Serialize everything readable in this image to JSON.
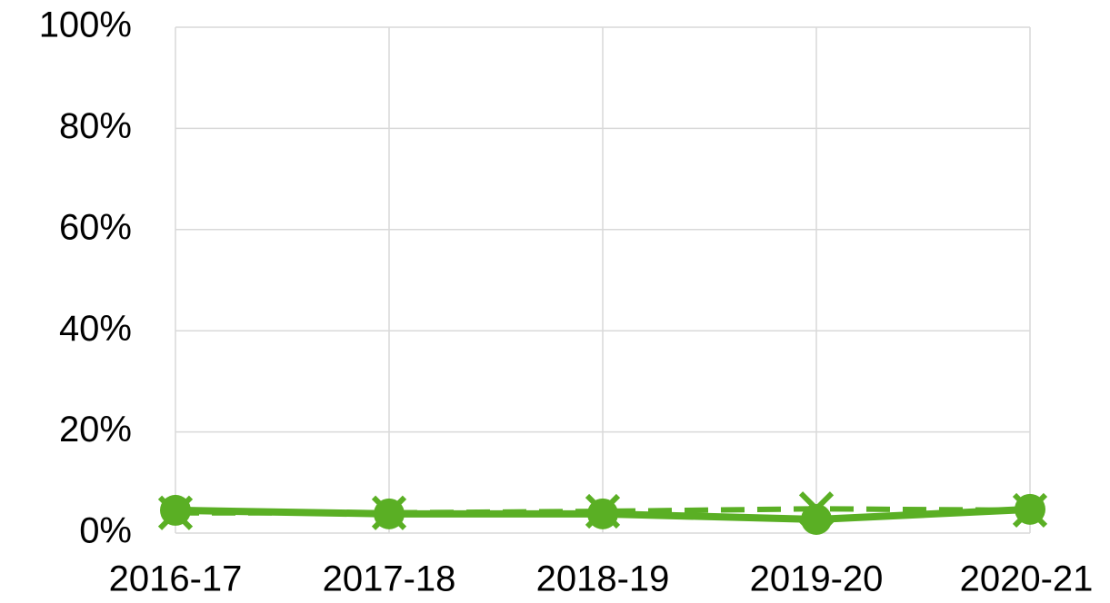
{
  "chart_data": {
    "type": "line",
    "categories": [
      "2016-17",
      "2017-18",
      "2018-19",
      "2019-20",
      "2020-21"
    ],
    "series": [
      {
        "color": "#5aaf24",
        "style": "solid",
        "marker": "circle",
        "values": [
          4.5,
          3.8,
          3.8,
          2.7,
          4.7
        ]
      },
      {
        "color": "#5aaf24",
        "style": "dashed",
        "marker": "x",
        "values": [
          4.0,
          4.0,
          4.3,
          4.8,
          4.5
        ]
      }
    ],
    "ylim": [
      0,
      100
    ],
    "yticks": [
      {
        "value": 0,
        "label": "0%"
      },
      {
        "value": 20,
        "label": "20%"
      },
      {
        "value": 40,
        "label": "40%"
      },
      {
        "value": 60,
        "label": "60%"
      },
      {
        "value": 80,
        "label": "80%"
      },
      {
        "value": 100,
        "label": "100%"
      }
    ],
    "grid": true
  }
}
